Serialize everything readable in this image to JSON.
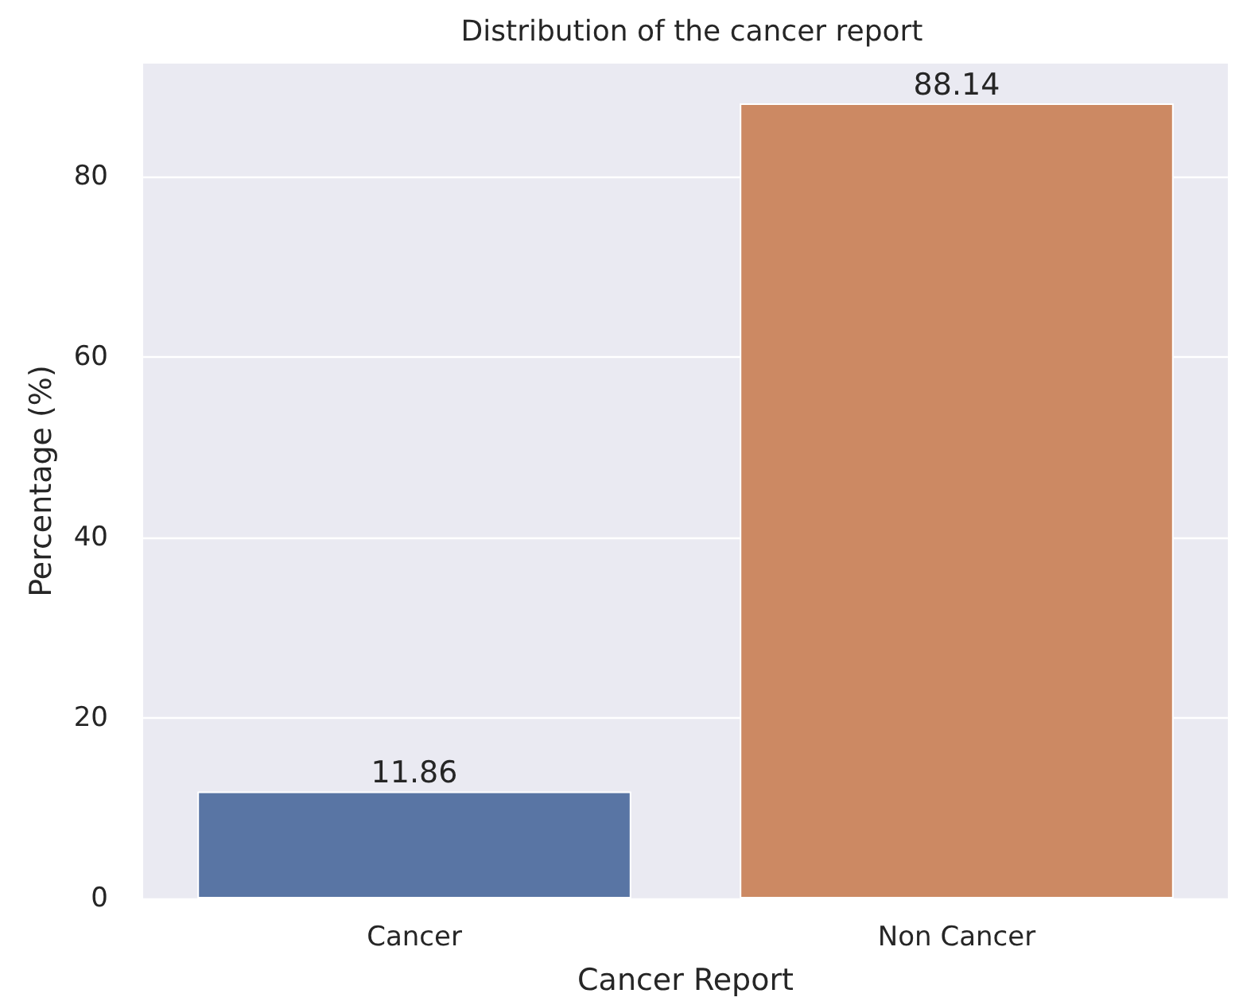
{
  "chart_data": {
    "type": "bar",
    "title": "Distribution of the cancer report",
    "xlabel": "Cancer Report",
    "ylabel": "Percentage (%)",
    "categories": [
      "Cancer",
      "Non Cancer"
    ],
    "values": [
      11.86,
      88.14
    ],
    "colors": [
      "#5975a4",
      "#cc8963"
    ],
    "ylim": [
      0,
      92.55
    ],
    "yticks": [
      0,
      20,
      40,
      60,
      80
    ],
    "grid": "y",
    "data_labels": true
  }
}
